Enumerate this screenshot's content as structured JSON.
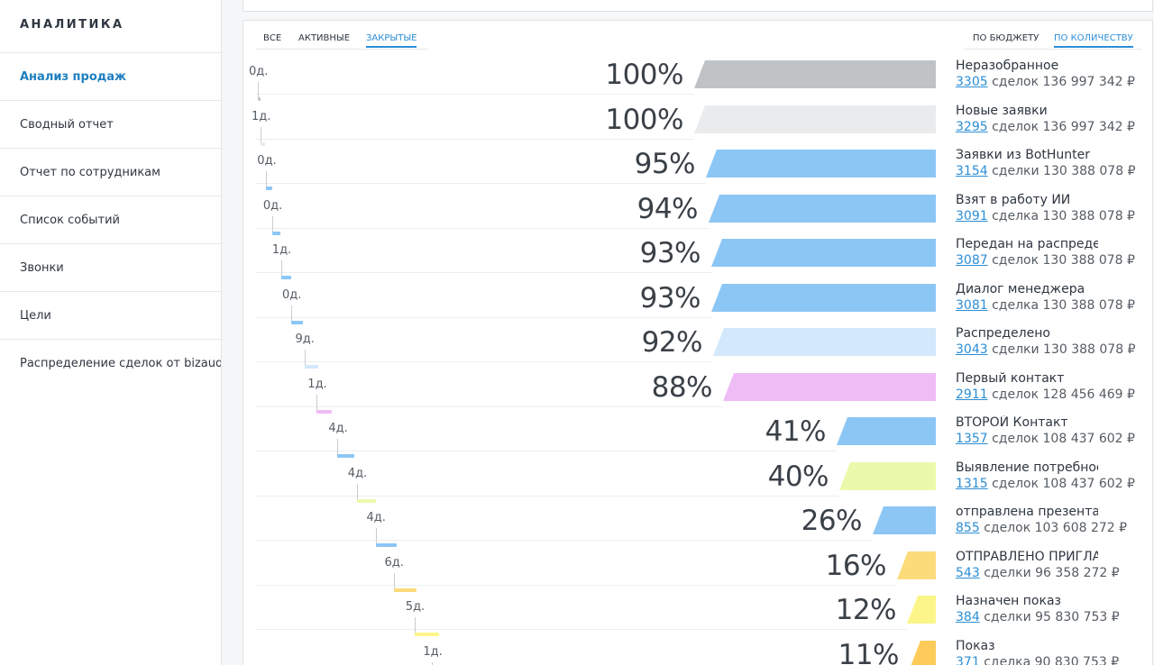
{
  "sidebar": {
    "title": "АНАЛИТИКА",
    "items": [
      {
        "label": "Анализ продаж",
        "active": true
      },
      {
        "label": "Сводный отчет",
        "active": false
      },
      {
        "label": "Отчет по сотрудникам",
        "active": false
      },
      {
        "label": "Список событий",
        "active": false
      },
      {
        "label": "Звонки",
        "active": false
      },
      {
        "label": "Цели",
        "active": false
      },
      {
        "label": "Распределение сделок от bizaudit",
        "active": false
      }
    ]
  },
  "filters": {
    "status_tabs": [
      {
        "label": "ВСЕ",
        "active": false
      },
      {
        "label": "АКТИВНЫЕ",
        "active": false
      },
      {
        "label": "ЗАКРЫТЫЕ",
        "active": true
      }
    ],
    "mode_tabs": [
      {
        "label": "ПО БЮДЖЕТУ",
        "active": false
      },
      {
        "label": "ПО КОЛИЧЕСТВУ",
        "active": true
      }
    ]
  },
  "funnel": [
    {
      "name": "Неразобранное",
      "count": "3305",
      "unit": "сделок",
      "amount": "136 997 342 ₽",
      "percent": "100%",
      "value": 100,
      "days": "0д.",
      "color": "#c0c3c6"
    },
    {
      "name": "Новые заявки",
      "count": "3295",
      "unit": "сделок",
      "amount": "136 997 342 ₽",
      "percent": "100%",
      "value": 100,
      "days": "1д.",
      "color": "#e9ebed"
    },
    {
      "name": "Заявки из BotHunter",
      "count": "3154",
      "unit": "сделки",
      "amount": "130 388 078 ₽",
      "percent": "95%",
      "value": 95,
      "days": "0д.",
      "color": "#8cc6f5"
    },
    {
      "name": "Взят в работу ИИ",
      "count": "3091",
      "unit": "сделка",
      "amount": "130 388 078 ₽",
      "percent": "94%",
      "value": 94,
      "days": "0д.",
      "color": "#8cc6f5"
    },
    {
      "name": "Передан на распределение",
      "count": "3087",
      "unit": "сделок",
      "amount": "130 388 078 ₽",
      "percent": "93%",
      "value": 93,
      "days": "1д.",
      "color": "#8cc6f5"
    },
    {
      "name": "Диалог менеджера",
      "count": "3081",
      "unit": "сделка",
      "amount": "130 388 078 ₽",
      "percent": "93%",
      "value": 93,
      "days": "0д.",
      "color": "#8cc6f5"
    },
    {
      "name": "Распределено",
      "count": "3043",
      "unit": "сделки",
      "amount": "130 388 078 ₽",
      "percent": "92%",
      "value": 92,
      "days": "9д.",
      "color": "#d3e8fa"
    },
    {
      "name": "Первый контакт",
      "count": "2911",
      "unit": "сделок",
      "amount": "128 456 469 ₽",
      "percent": "88%",
      "value": 88,
      "days": "1д.",
      "color": "#efbcf5"
    },
    {
      "name": "ВТОРОЙ Контакт",
      "count": "1357",
      "unit": "сделок",
      "amount": "108 437 602 ₽",
      "percent": "41%",
      "value": 41,
      "days": "4д.",
      "color": "#8cc6f5"
    },
    {
      "name": "Выявление потребности",
      "count": "1315",
      "unit": "сделок",
      "amount": "108 437 602 ₽",
      "percent": "40%",
      "value": 40,
      "days": "4д.",
      "color": "#ebf9ac"
    },
    {
      "name": "отправлена презентация",
      "count": "855",
      "unit": "сделок",
      "amount": "103 608 272 ₽",
      "percent": "26%",
      "value": 26,
      "days": "4д.",
      "color": "#8cc6f5"
    },
    {
      "name": "ОТПРАВЛЕНО ПРИГЛАШЕНИЕ",
      "count": "543",
      "unit": "сделки",
      "amount": "96 358 272 ₽",
      "percent": "16%",
      "value": 16,
      "days": "6д.",
      "color": "#fcdb7a"
    },
    {
      "name": "Назначен показ",
      "count": "384",
      "unit": "сделки",
      "amount": "95 830 753 ₽",
      "percent": "12%",
      "value": 12,
      "days": "5д.",
      "color": "#fcf68a"
    },
    {
      "name": "Показ",
      "count": "371",
      "unit": "сделка",
      "amount": "90 830 753 ₽",
      "percent": "11%",
      "value": 11,
      "days": "1д.",
      "color": "#fccb5a"
    }
  ]
}
